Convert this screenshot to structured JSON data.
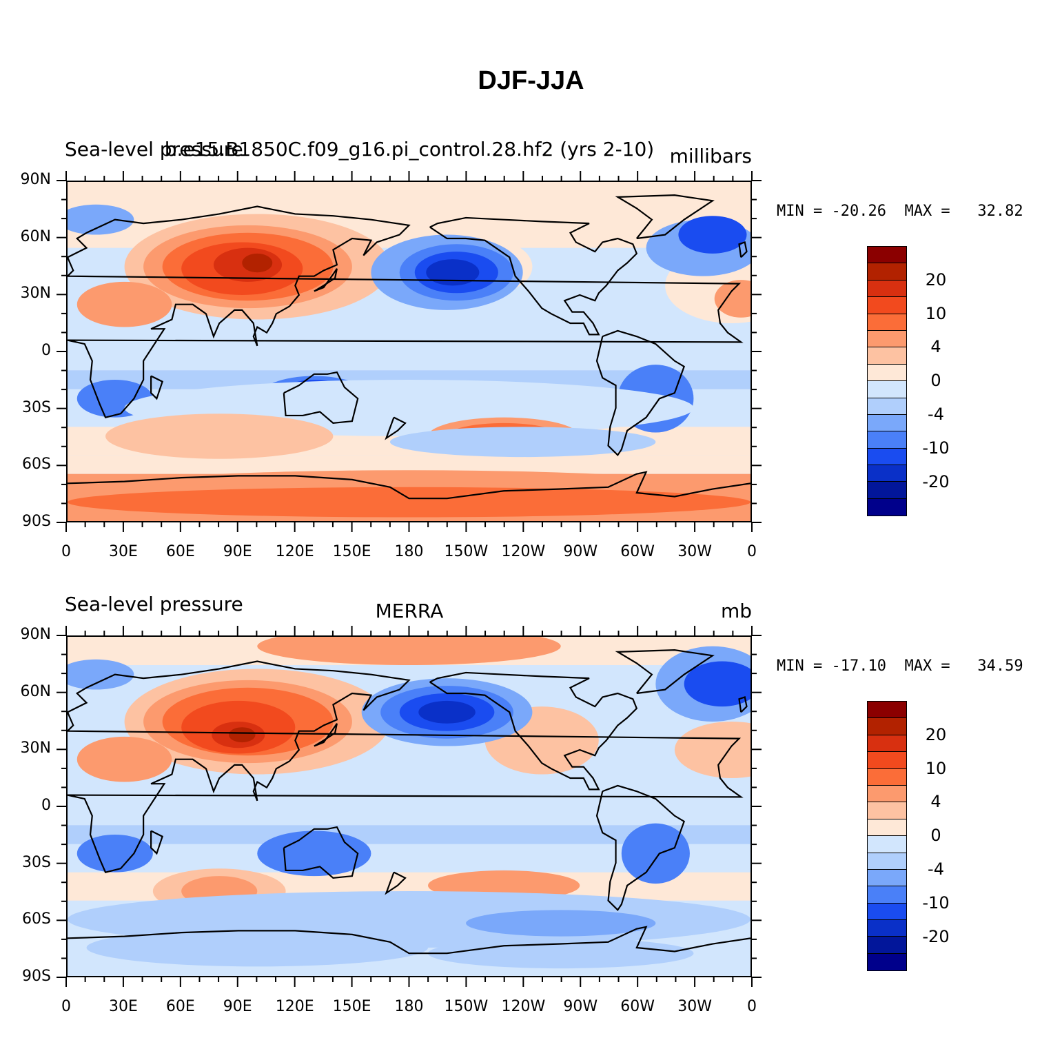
{
  "figure": {
    "title": "DJF-JJA"
  },
  "colors": {
    "levels": [
      "#8b0000",
      "#b22200",
      "#d83010",
      "#f24a1e",
      "#fb6d38",
      "#fc9a6e",
      "#fdc2a2",
      "#fee8d7",
      "#d2e6fd",
      "#b0cffc",
      "#7aa8fa",
      "#4a80f8",
      "#1a4cf0",
      "#0a30c8",
      "#02169a",
      "#00008b"
    ],
    "coast": "#000000"
  },
  "chart_data": [
    {
      "type": "heatmap",
      "title": "b.e15.B1850C.f09_g16.pi_control.28.hf2 (yrs 2-10)",
      "left_title": "Sea-level pressure",
      "center_title": "b.e15.B1850C.f09_g16.pi_control.28.hf2 (yrs 2-10)",
      "units": "millibars",
      "min_label": "MIN = -20.26",
      "max_label": "MAX =   32.82",
      "min": -20.26,
      "max": 32.82,
      "xticks": [
        "0",
        "30E",
        "60E",
        "90E",
        "120E",
        "150E",
        "180",
        "150W",
        "120W",
        "90W",
        "60W",
        "30W",
        "0"
      ],
      "yticks": [
        "90N",
        "60N",
        "30N",
        "0",
        "30S",
        "60S",
        "90S"
      ],
      "xlim": [
        0,
        360
      ],
      "ylim": [
        -90,
        90
      ],
      "colorbar_labels": [
        "20",
        "10",
        "4",
        "0",
        "-4",
        "-10",
        "-20"
      ],
      "contour_levels": [
        -25,
        -20,
        -15,
        -10,
        -6,
        -4,
        -2,
        0,
        2,
        4,
        6,
        10,
        15,
        20,
        25
      ]
    },
    {
      "type": "heatmap",
      "title": "MERRA",
      "left_title": "Sea-level pressure",
      "center_title": "MERRA",
      "units": "mb",
      "min_label": "MIN = -17.10",
      "max_label": "MAX =   34.59",
      "min": -17.1,
      "max": 34.59,
      "xticks": [
        "0",
        "30E",
        "60E",
        "90E",
        "120E",
        "150E",
        "180",
        "150W",
        "120W",
        "90W",
        "60W",
        "30W",
        "0"
      ],
      "yticks": [
        "90N",
        "60N",
        "30N",
        "0",
        "30S",
        "60S",
        "90S"
      ],
      "xlim": [
        0,
        360
      ],
      "ylim": [
        -90,
        90
      ],
      "colorbar_labels": [
        "20",
        "10",
        "4",
        "0",
        "-4",
        "-10",
        "-20"
      ],
      "contour_levels": [
        -25,
        -20,
        -15,
        -10,
        -6,
        -4,
        -2,
        0,
        2,
        4,
        6,
        10,
        15,
        20,
        25
      ]
    }
  ]
}
